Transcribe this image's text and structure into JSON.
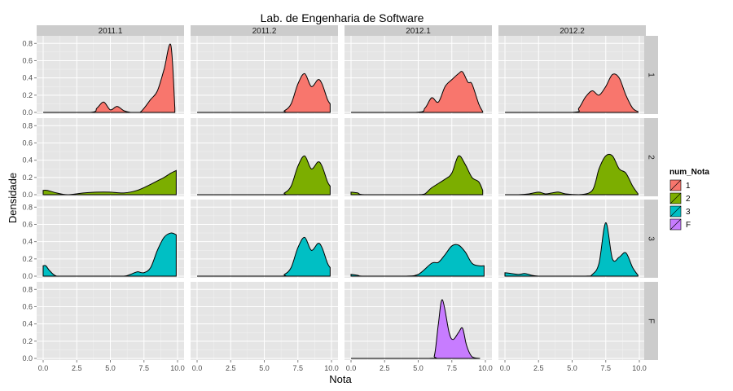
{
  "chart_data": {
    "type": "area",
    "title": "Lab. de Engenharia de Software",
    "xlabel": "Nota",
    "ylabel": "Densidade",
    "xlim": [
      0,
      10
    ],
    "ylim": [
      0,
      0.85
    ],
    "x_ticks": [
      0,
      2.5,
      5,
      7.5,
      10
    ],
    "x_tick_labels": [
      "0.0",
      "2.5",
      "5.0",
      "7.5",
      "10.0"
    ],
    "y_ticks": [
      0,
      0.2,
      0.4,
      0.6,
      0.8
    ],
    "y_tick_labels": [
      "0.0",
      "0.2",
      "0.4",
      "0.6",
      "0.8"
    ],
    "facet_cols": [
      "2011.1",
      "2011.2",
      "2012.1",
      "2012.2"
    ],
    "facet_rows": [
      "1",
      "2",
      "3",
      "F"
    ],
    "grid": true,
    "legend": {
      "title": "num_Nota",
      "position": "right",
      "entries": [
        {
          "label": "1",
          "color": "#F8766D"
        },
        {
          "label": "2",
          "color": "#7CAE00"
        },
        {
          "label": "3",
          "color": "#00BFC4"
        },
        {
          "label": "F",
          "color": "#C77CFF"
        }
      ]
    },
    "style": {
      "panel_bg": "#E5E5E5",
      "grid_major": "#FFFFFF",
      "strip_bg": "#CCCCCC",
      "outline": "#000000"
    },
    "panels": [
      {
        "row": "1",
        "col": "2011.1",
        "x": [
          0,
          3.5,
          4,
          4.5,
          5,
          5.5,
          6,
          6.5,
          7.2,
          8,
          8.5,
          9,
          9.5,
          9.8
        ],
        "y": [
          0,
          0,
          0.05,
          0.12,
          0.03,
          0.07,
          0.02,
          0,
          0,
          0.15,
          0.25,
          0.5,
          0.78,
          0.05
        ]
      },
      {
        "row": "1",
        "col": "2011.2",
        "x": [
          0,
          6,
          6.5,
          7,
          7.5,
          8,
          8.5,
          9,
          9.3,
          9.7,
          9.9
        ],
        "y": [
          0,
          0,
          0.02,
          0.1,
          0.33,
          0.45,
          0.3,
          0.38,
          0.33,
          0.15,
          0.1
        ]
      },
      {
        "row": "1",
        "col": "2012.1",
        "x": [
          0,
          4.8,
          5.5,
          6,
          6.5,
          7,
          7.5,
          8,
          8.3,
          8.7,
          9,
          9.5,
          9.8
        ],
        "y": [
          0,
          0,
          0.05,
          0.17,
          0.12,
          0.3,
          0.38,
          0.45,
          0.47,
          0.35,
          0.33,
          0.1,
          0.01
        ]
      },
      {
        "row": "1",
        "col": "2012.2",
        "x": [
          0,
          5,
          5.5,
          6,
          6.5,
          7,
          7.5,
          8,
          8.5,
          9,
          9.5,
          9.9
        ],
        "y": [
          0,
          0,
          0.05,
          0.18,
          0.25,
          0.2,
          0.3,
          0.44,
          0.4,
          0.2,
          0.05,
          0.01
        ]
      },
      {
        "row": "2",
        "col": "2011.1",
        "x": [
          0,
          0.3,
          1,
          1.8,
          3,
          4,
          5,
          6,
          7,
          8,
          8.5,
          9,
          9.5,
          9.9
        ],
        "y": [
          0.05,
          0.05,
          0.02,
          0,
          0.02,
          0.03,
          0.03,
          0.02,
          0.05,
          0.12,
          0.16,
          0.2,
          0.25,
          0.28
        ]
      },
      {
        "row": "2",
        "col": "2011.2",
        "x": [
          0,
          6,
          6.5,
          7,
          7.5,
          8,
          8.5,
          9,
          9.3,
          9.7,
          9.9
        ],
        "y": [
          0,
          0,
          0.02,
          0.1,
          0.33,
          0.45,
          0.3,
          0.38,
          0.33,
          0.15,
          0.1
        ]
      },
      {
        "row": "2",
        "col": "2012.1",
        "x": [
          0,
          0.5,
          1,
          4,
          5,
          5.5,
          6,
          7,
          7.5,
          8,
          8.5,
          9,
          9.5,
          9.8
        ],
        "y": [
          0.03,
          0.02,
          0,
          0,
          0,
          0.01,
          0.08,
          0.18,
          0.25,
          0.45,
          0.35,
          0.2,
          0.15,
          0.05
        ]
      },
      {
        "row": "2",
        "col": "2012.2",
        "x": [
          0,
          1,
          1.8,
          2.5,
          3,
          3.5,
          4,
          4.5,
          5.5,
          6.5,
          7,
          7.5,
          8,
          8.5,
          9,
          9.5,
          9.9
        ],
        "y": [
          0,
          0,
          0.01,
          0.03,
          0.01,
          0.02,
          0.03,
          0.01,
          0,
          0.05,
          0.3,
          0.45,
          0.45,
          0.3,
          0.25,
          0.1,
          0.01
        ]
      },
      {
        "row": "3",
        "col": "2011.1",
        "x": [
          0,
          0.2,
          0.5,
          1,
          2,
          5,
          6,
          6.5,
          7,
          7.5,
          8,
          8.5,
          9,
          9.5,
          9.9
        ],
        "y": [
          0.12,
          0.12,
          0.06,
          0,
          0,
          0,
          0,
          0.02,
          0.05,
          0.04,
          0.1,
          0.3,
          0.45,
          0.5,
          0.48
        ]
      },
      {
        "row": "3",
        "col": "2011.2",
        "x": [
          0,
          6,
          6.5,
          7,
          7.5,
          8,
          8.5,
          9,
          9.3,
          9.7,
          9.9
        ],
        "y": [
          0,
          0,
          0.02,
          0.1,
          0.33,
          0.45,
          0.3,
          0.38,
          0.33,
          0.15,
          0.1
        ]
      },
      {
        "row": "3",
        "col": "2012.1",
        "x": [
          0,
          0.5,
          1,
          4,
          5,
          6,
          6.5,
          7,
          7.5,
          8,
          8.5,
          9,
          9.5,
          9.9
        ],
        "y": [
          0.02,
          0.01,
          0,
          0,
          0.02,
          0.15,
          0.16,
          0.25,
          0.35,
          0.36,
          0.28,
          0.15,
          0.12,
          0.12
        ]
      },
      {
        "row": "3",
        "col": "2012.2",
        "x": [
          0,
          0.5,
          1,
          1.5,
          2,
          2.5,
          3,
          6,
          6.5,
          7,
          7.5,
          8,
          8.5,
          9,
          9.5,
          9.9
        ],
        "y": [
          0.04,
          0.03,
          0.02,
          0.03,
          0.01,
          0,
          0,
          0,
          0.02,
          0.15,
          0.62,
          0.2,
          0.22,
          0.27,
          0.1,
          0.01
        ]
      },
      {
        "row": "F",
        "col": "2011.1",
        "x": [],
        "y": []
      },
      {
        "row": "F",
        "col": "2011.2",
        "x": [],
        "y": []
      },
      {
        "row": "F",
        "col": "2012.1",
        "x": [
          0,
          5.8,
          6.2,
          6.5,
          6.8,
          7.3,
          7.6,
          8,
          8.3,
          8.6,
          9,
          9.6
        ],
        "y": [
          0,
          0,
          0.03,
          0.4,
          0.68,
          0.3,
          0.22,
          0.3,
          0.35,
          0.15,
          0.02,
          0
        ]
      },
      {
        "row": "F",
        "col": "2012.2",
        "x": [],
        "y": []
      }
    ]
  }
}
